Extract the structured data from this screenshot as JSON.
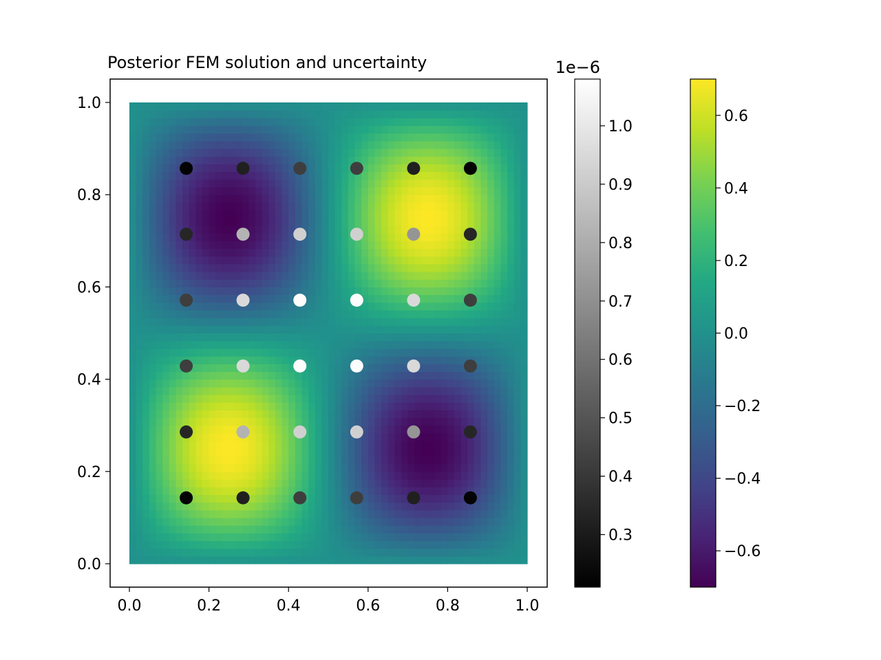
{
  "chart_data": {
    "type": "heatmap",
    "title": "Posterior FEM solution and uncertainty",
    "xlabel": "",
    "ylabel": "",
    "xlim": [
      -0.05,
      1.05
    ],
    "ylim": [
      -0.05,
      1.05
    ],
    "x_ticks": [
      "0.0",
      "0.2",
      "0.4",
      "0.6",
      "0.8",
      "1.0"
    ],
    "y_ticks": [
      "0.0",
      "0.2",
      "0.4",
      "0.6",
      "0.8",
      "1.0"
    ],
    "field": {
      "domain_x": [
        0,
        1
      ],
      "domain_y": [
        0,
        1
      ],
      "colormap": "viridis",
      "vmin": -0.7,
      "vmax": 0.7,
      "expression": "0.7*sin(2*pi*x)*sin(2*pi*y)"
    },
    "points": {
      "x": [
        0.1429,
        0.2857,
        0.4286,
        0.5714,
        0.7143,
        0.8571
      ],
      "y": [
        0.1429,
        0.2857,
        0.4286,
        0.5714,
        0.7143,
        0.8571
      ],
      "colormap": "gray",
      "uncertainty_rows": [
        [
          0.22,
          0.32,
          0.42,
          0.42,
          0.32,
          0.22
        ],
        [
          0.34,
          0.82,
          0.92,
          0.92,
          0.72,
          0.34
        ],
        [
          0.42,
          0.95,
          1.07,
          1.07,
          0.95,
          0.42
        ],
        [
          0.42,
          0.95,
          1.07,
          1.07,
          0.95,
          0.42
        ],
        [
          0.34,
          0.82,
          0.92,
          0.92,
          0.72,
          0.34
        ],
        [
          0.22,
          0.32,
          0.42,
          0.42,
          0.32,
          0.22
        ]
      ]
    },
    "colorbars": [
      {
        "name": "uncertainty",
        "colormap": "gray",
        "min": 0.21,
        "max": 1.08,
        "offset_label": "1e−6",
        "ticks": [
          0.3,
          0.4,
          0.5,
          0.6,
          0.7,
          0.8,
          0.9,
          1.0
        ],
        "tick_labels": [
          "0.3",
          "0.4",
          "0.5",
          "0.6",
          "0.7",
          "0.8",
          "0.9",
          "1.0"
        ]
      },
      {
        "name": "solution",
        "colormap": "viridis",
        "min": -0.7,
        "max": 0.7,
        "ticks": [
          -0.6,
          -0.4,
          -0.2,
          0.0,
          0.2,
          0.4,
          0.6
        ],
        "tick_labels": [
          "−0.6",
          "−0.4",
          "−0.2",
          "0.0",
          "0.2",
          "0.4",
          "0.6"
        ]
      }
    ]
  }
}
